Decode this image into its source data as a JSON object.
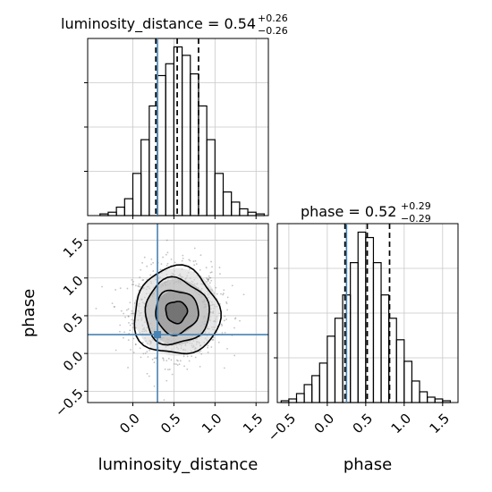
{
  "chart_data": {
    "type": "corner",
    "parameters": [
      "luminosity_distance",
      "phase"
    ],
    "truths": {
      "luminosity_distance": 0.3,
      "phase": 0.25
    },
    "truth_color": "#4682b4",
    "line_color": "#000000",
    "grid": true,
    "panels": [
      {
        "id": "hist-luminosity-distance",
        "type": "histogram",
        "param": "luminosity_distance",
        "title_prefix": "luminosity_distance = ",
        "median_label": "0.54",
        "plus_label": "+0.26",
        "minus_label": "−0.26",
        "quantiles": [
          0.28,
          0.54,
          0.8
        ],
        "xlim": [
          -0.55,
          1.65
        ],
        "bin_edges": [
          -0.4,
          -0.3,
          -0.2,
          -0.1,
          0.0,
          0.1,
          0.2,
          0.3,
          0.4,
          0.5,
          0.6,
          0.7,
          0.8,
          0.9,
          1.0,
          1.1,
          1.2,
          1.3,
          1.4,
          1.5,
          1.6
        ],
        "counts": [
          1,
          2,
          5,
          10,
          25,
          45,
          65,
          83,
          90,
          100,
          95,
          84,
          65,
          45,
          25,
          14,
          8,
          4,
          2,
          1
        ]
      },
      {
        "id": "hist-phase",
        "type": "histogram",
        "param": "phase",
        "title_prefix": "phase = ",
        "median_label": "0.52",
        "plus_label": "+0.29",
        "minus_label": "−0.29",
        "quantiles": [
          0.23,
          0.52,
          0.81
        ],
        "xlim": [
          -0.65,
          1.7
        ],
        "xticks": [
          "−0.5",
          "0.0",
          "0.5",
          "1.0",
          "1.5"
        ],
        "xtick_values": [
          -0.5,
          0.0,
          0.5,
          1.0,
          1.5
        ],
        "xlabel": "phase",
        "bin_edges": [
          -0.6,
          -0.5,
          -0.4,
          -0.3,
          -0.2,
          -0.1,
          0.0,
          0.1,
          0.2,
          0.3,
          0.4,
          0.5,
          0.6,
          0.7,
          0.8,
          0.9,
          1.0,
          1.1,
          1.2,
          1.3,
          1.4,
          1.5,
          1.6
        ],
        "counts": [
          1,
          2,
          5,
          10,
          15,
          22,
          37,
          47,
          60,
          78,
          95,
          92,
          78,
          60,
          47,
          35,
          23,
          12,
          6,
          3,
          2,
          1
        ]
      },
      {
        "id": "scatter-2d",
        "type": "2d-density",
        "x_param": "luminosity_distance",
        "y_param": "phase",
        "xlim": [
          -0.55,
          1.65
        ],
        "ylim": [
          -0.65,
          1.72
        ],
        "xticks": [
          "0.0",
          "0.5",
          "1.0",
          "1.5"
        ],
        "xtick_values": [
          0.0,
          0.5,
          1.0,
          1.5
        ],
        "yticks": [
          "−0.5",
          "0.0",
          "0.5",
          "1.0",
          "1.5"
        ],
        "ytick_values": [
          -0.5,
          0.0,
          0.5,
          1.0,
          1.5
        ],
        "xlabel": "luminosity_distance",
        "ylabel": "phase",
        "center": [
          0.53,
          0.55
        ],
        "sigma": [
          0.26,
          0.29
        ],
        "contour_levels_sigma": [
          0.5,
          1.0,
          1.5,
          2.0
        ]
      }
    ]
  }
}
